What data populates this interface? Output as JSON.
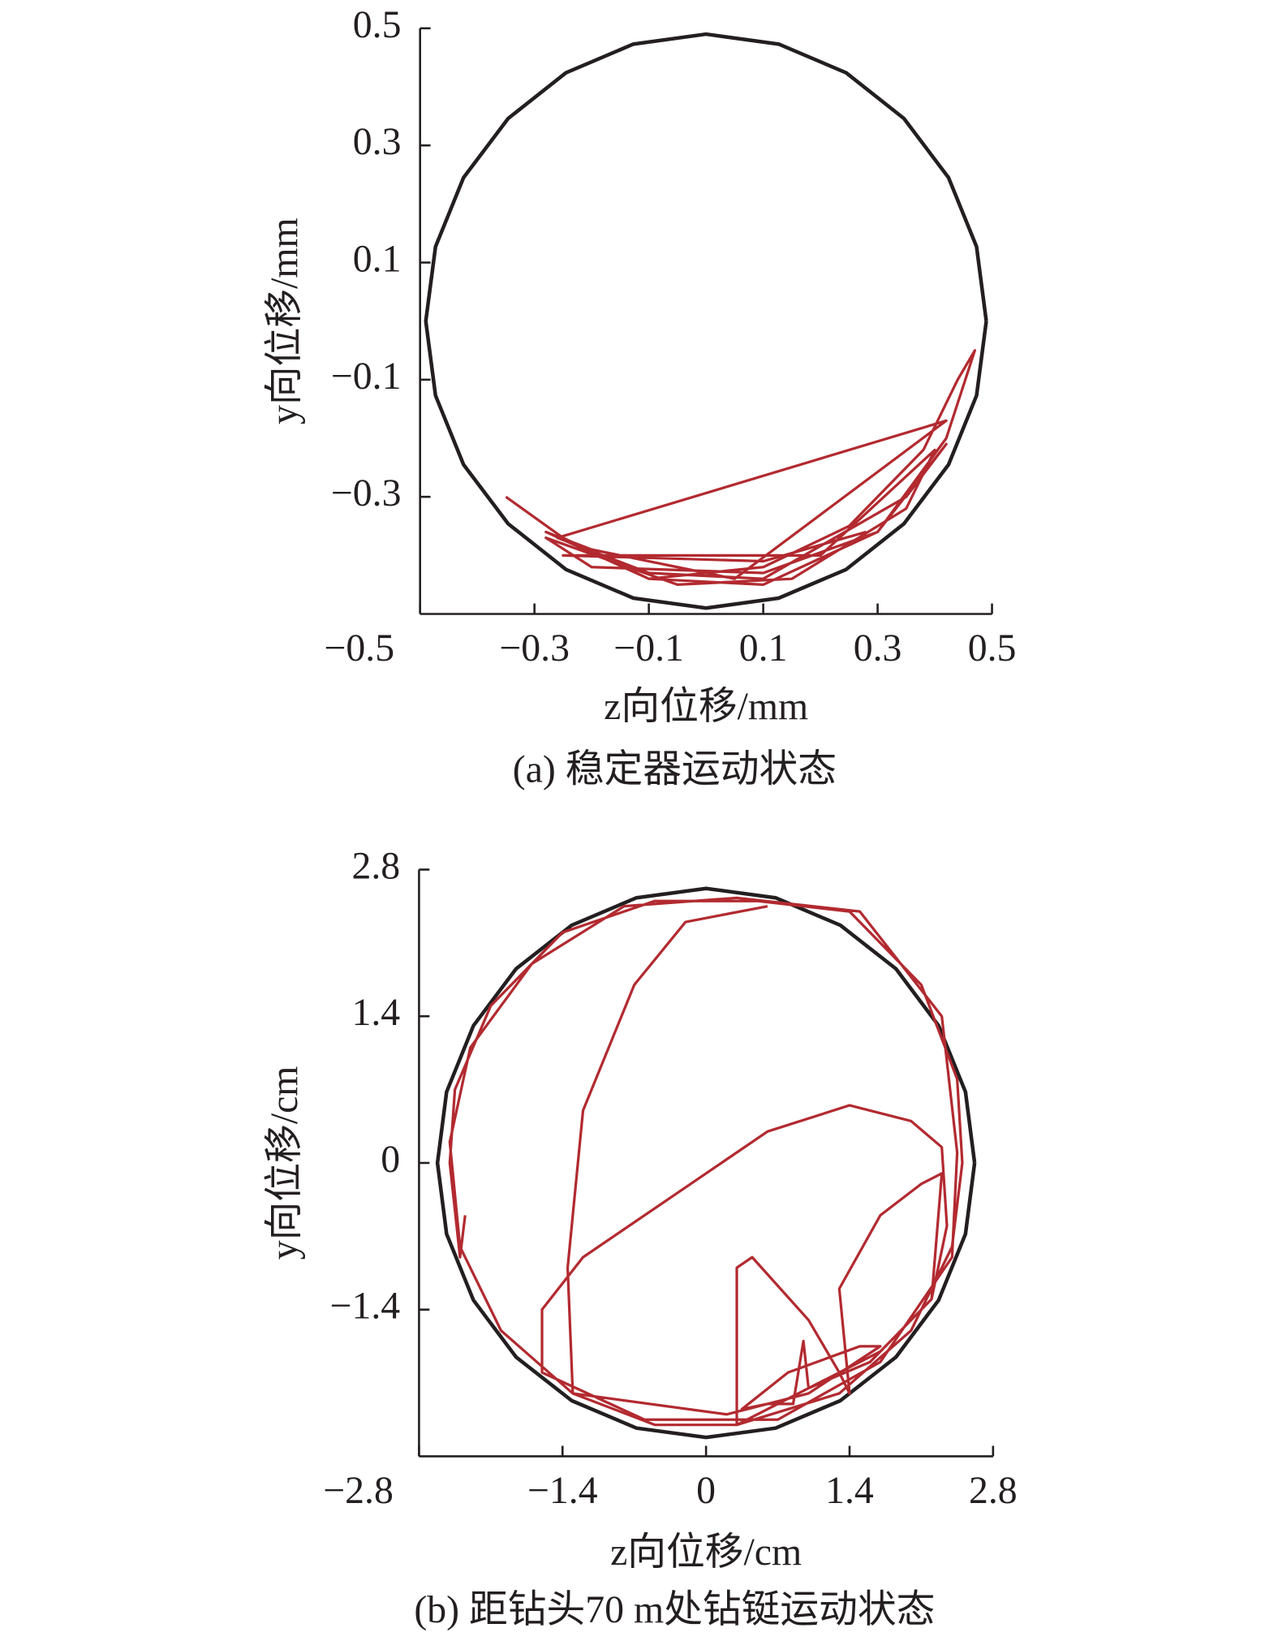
{
  "chart_data": [
    {
      "type": "line",
      "caption": "(a) 稳定器运动状态",
      "xlabel": "z向位移/mm",
      "ylabel": "y向位移/mm",
      "xlim": [
        -0.5,
        0.5
      ],
      "ylim": [
        -0.5,
        0.5
      ],
      "xticks": [
        {
          "value": -0.5,
          "label": "−0.5"
        },
        {
          "value": -0.3,
          "label": "−0.3"
        },
        {
          "value": -0.1,
          "label": "−0.1"
        },
        0.1,
        0.3,
        0.5
      ],
      "yticks": [
        {
          "value": -0.3,
          "label": "−0.3"
        },
        {
          "value": -0.1,
          "label": "−0.1"
        },
        0.1,
        0.3,
        0.5
      ],
      "series": [
        {
          "color": "#231f20",
          "x": [
            0.49,
            0.473,
            0.424,
            0.346,
            0.245,
            0.127,
            0,
            -0.127,
            -0.245,
            -0.346,
            -0.424,
            -0.473,
            -0.49,
            -0.473,
            -0.424,
            -0.346,
            -0.245,
            -0.127,
            0,
            0.127,
            0.245,
            0.346,
            0.424,
            0.473,
            0.49
          ],
          "y": [
            0,
            0.127,
            0.245,
            0.346,
            0.424,
            0.473,
            0.49,
            0.473,
            0.424,
            0.346,
            0.245,
            0.127,
            0,
            -0.127,
            -0.245,
            -0.346,
            -0.424,
            -0.473,
            -0.49,
            -0.473,
            -0.424,
            -0.346,
            -0.245,
            -0.127,
            0
          ]
        },
        {
          "color": "#b22a30",
          "x": [
            -0.35,
            -0.25,
            -0.1,
            0.1,
            0.3,
            0.42,
            0.47,
            0.44,
            0.38,
            0.25,
            0.1,
            -0.1,
            -0.28,
            -0.2,
            0.05,
            0.42,
            -0.26,
            -0.1,
            0.1,
            0.35,
            0.42,
            0.3,
            0.1,
            -0.2,
            -0.28,
            -0.05,
            0.15,
            0.35,
            0.4,
            0.2,
            -0.25,
            0.1,
            0.28
          ],
          "y": [
            -0.3,
            -0.37,
            -0.44,
            -0.45,
            -0.36,
            -0.2,
            -0.05,
            -0.1,
            -0.22,
            -0.35,
            -0.42,
            -0.44,
            -0.36,
            -0.39,
            -0.44,
            -0.17,
            -0.37,
            -0.43,
            -0.44,
            -0.3,
            -0.21,
            -0.36,
            -0.43,
            -0.42,
            -0.37,
            -0.45,
            -0.44,
            -0.32,
            -0.22,
            -0.4,
            -0.4,
            -0.41,
            -0.36
          ]
        }
      ]
    },
    {
      "type": "line",
      "caption": "(b) 距钻头70 m处钻铤运动状态",
      "xlabel": "z向位移/cm",
      "ylabel": "y向位移/cm",
      "xlim": [
        -2.8,
        2.8
      ],
      "ylim": [
        -2.8,
        2.8
      ],
      "xticks": [
        {
          "value": -2.8,
          "label": "−2.8"
        },
        {
          "value": -1.4,
          "label": "−1.4"
        },
        0,
        1.4,
        2.8
      ],
      "yticks": [
        {
          "value": -1.4,
          "label": "−1.4"
        },
        0,
        1.4,
        2.8
      ],
      "series": [
        {
          "color": "#231f20",
          "x": [
            2.62,
            2.531,
            2.269,
            1.853,
            1.31,
            0.678,
            0,
            -0.678,
            -1.31,
            -1.853,
            -2.269,
            -2.531,
            -2.62,
            -2.531,
            -2.269,
            -1.853,
            -1.31,
            -0.678,
            0,
            0.678,
            1.31,
            1.853,
            2.269,
            2.531,
            2.62
          ],
          "y": [
            0,
            0.678,
            1.31,
            1.853,
            2.269,
            2.531,
            2.62,
            2.531,
            2.269,
            1.853,
            1.31,
            0.678,
            0,
            -0.678,
            -1.31,
            -1.853,
            -2.269,
            -2.531,
            -2.62,
            -2.531,
            -2.269,
            -1.853,
            -1.31,
            -0.678,
            0
          ]
        },
        {
          "color": "#b22a30",
          "x": [
            -2.35,
            -2.4,
            -2.5,
            -2.45,
            -2.1,
            -1.4,
            -0.5,
            0.5,
            1.4,
            2.1,
            2.45,
            2.5,
            2.4,
            2.0,
            1.3,
            0.3,
            -0.5,
            -1.3,
            -2.0,
            -2.4,
            -2.5,
            -2.3,
            -1.7,
            -0.8,
            0.3,
            1.5,
            2.3,
            2.45,
            2.4,
            1.7,
            0.7,
            -0.6,
            -1.6,
            -1.6,
            -1.2,
            -0.3,
            0.6,
            1.4,
            2.0,
            2.3,
            2.35,
            2.2,
            1.7,
            0.9,
            0.3,
            0.3,
            0.3,
            0.45,
            1.0,
            1.3,
            1.4,
            1.3,
            1.7,
            2.1,
            2.3,
            2.2,
            1.6,
            1.0,
            0.95,
            0.85,
            0.6,
            0.35,
            0.8,
            1.5,
            1.7,
            1.0,
            0.2,
            -1.3,
            -1.35,
            -1.2,
            -0.7,
            -0.2,
            0.6
          ],
          "y": [
            -0.5,
            -0.9,
            0,
            0.7,
            1.5,
            2.2,
            2.5,
            2.5,
            2.4,
            1.7,
            0.8,
            0,
            -0.8,
            -1.6,
            -2.2,
            -2.5,
            -2.5,
            -2.2,
            -1.6,
            -0.8,
            0.2,
            1.1,
            1.9,
            2.45,
            2.53,
            2.4,
            1.4,
            0.1,
            -0.9,
            -1.9,
            -2.45,
            -2.45,
            -2.0,
            -1.4,
            -0.9,
            -0.3,
            0.3,
            0.55,
            0.4,
            0.15,
            -0.6,
            -1.3,
            -1.8,
            -2.2,
            -2.5,
            -2.3,
            -1.0,
            -0.9,
            -1.5,
            -2.0,
            -2.2,
            -1.2,
            -0.5,
            -0.2,
            -0.1,
            -1.3,
            -1.9,
            -2.15,
            -1.7,
            -2.3,
            -2.3,
            -2.35,
            -2.0,
            -1.75,
            -1.75,
            -2.2,
            -2.4,
            -2.2,
            -1.0,
            0.5,
            1.7,
            2.3,
            2.45
          ]
        }
      ]
    }
  ]
}
